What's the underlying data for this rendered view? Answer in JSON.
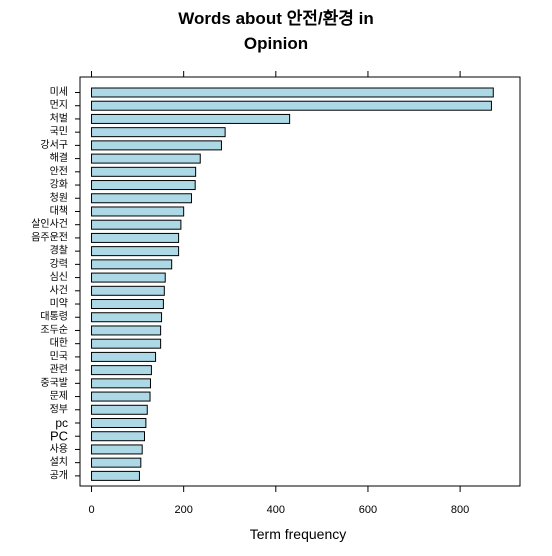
{
  "chart_data": {
    "type": "bar",
    "orientation": "horizontal",
    "title_line1": "Words about 안전/환경 in",
    "title_line2": "Opinion",
    "xlabel": "Term frequency",
    "ylabel": "",
    "xlim": [
      -25,
      930
    ],
    "xticks": [
      0,
      200,
      400,
      600,
      800
    ],
    "grid": false,
    "legend": "none",
    "bar_color": "#add8e6",
    "edge_color": "#000000",
    "categories": [
      "미세",
      "먼지",
      "처벌",
      "국민",
      "강서구",
      "해결",
      "안전",
      "강화",
      "청원",
      "대책",
      "살인사건",
      "음주운전",
      "경찰",
      "강력",
      "심신",
      "사건",
      "미약",
      "대통령",
      "조두순",
      "대한",
      "민국",
      "관련",
      "중국발",
      "문제",
      "정부",
      "pc",
      "PC",
      "사용",
      "설치",
      "공개"
    ],
    "values": [
      872,
      868,
      430,
      290,
      282,
      236,
      226,
      225,
      217,
      200,
      194,
      189,
      189,
      174,
      160,
      158,
      156,
      152,
      150,
      150,
      139,
      130,
      128,
      127,
      121,
      118,
      115,
      110,
      107,
      104
    ]
  }
}
